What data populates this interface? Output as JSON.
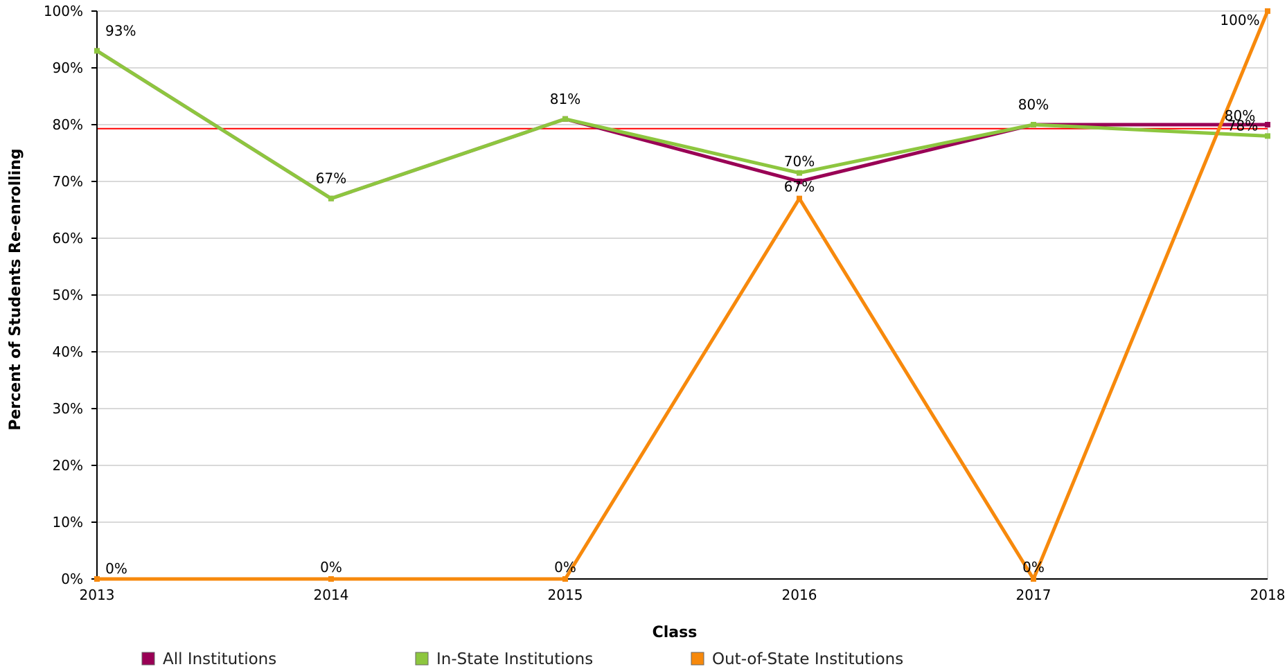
{
  "chart_data": {
    "type": "line",
    "xlabel": "Class",
    "ylabel": "Percent of Students Re-enrolling",
    "categories": [
      "2013",
      "2014",
      "2015",
      "2016",
      "2017",
      "2018"
    ],
    "ylim": [
      0,
      100
    ],
    "y_ticks": [
      "0%",
      "10%",
      "20%",
      "30%",
      "40%",
      "50%",
      "60%",
      "70%",
      "80%",
      "90%",
      "100%"
    ],
    "grid": true,
    "legend_position": "bottom",
    "reference_line": {
      "value": 79.3,
      "color": "#ff0000"
    },
    "series": [
      {
        "name": "All Institutions",
        "color": "#990055",
        "values": [
          93,
          67,
          81,
          70,
          80,
          80
        ],
        "labels": [
          "93%",
          "67%",
          "81%",
          "70%",
          "80%",
          "80%"
        ]
      },
      {
        "name": "In-State Institutions",
        "color": "#8dc63f",
        "values": [
          93,
          67,
          81,
          71.5,
          80,
          78
        ],
        "labels": [
          "",
          "",
          "",
          "",
          "",
          "78%"
        ]
      },
      {
        "name": "Out-of-State Institutions",
        "color": "#f7890c",
        "values": [
          0,
          0,
          0,
          67,
          0,
          100
        ],
        "labels": [
          "0%",
          "0%",
          "0%",
          "67%",
          "0%",
          "100%"
        ]
      }
    ]
  }
}
